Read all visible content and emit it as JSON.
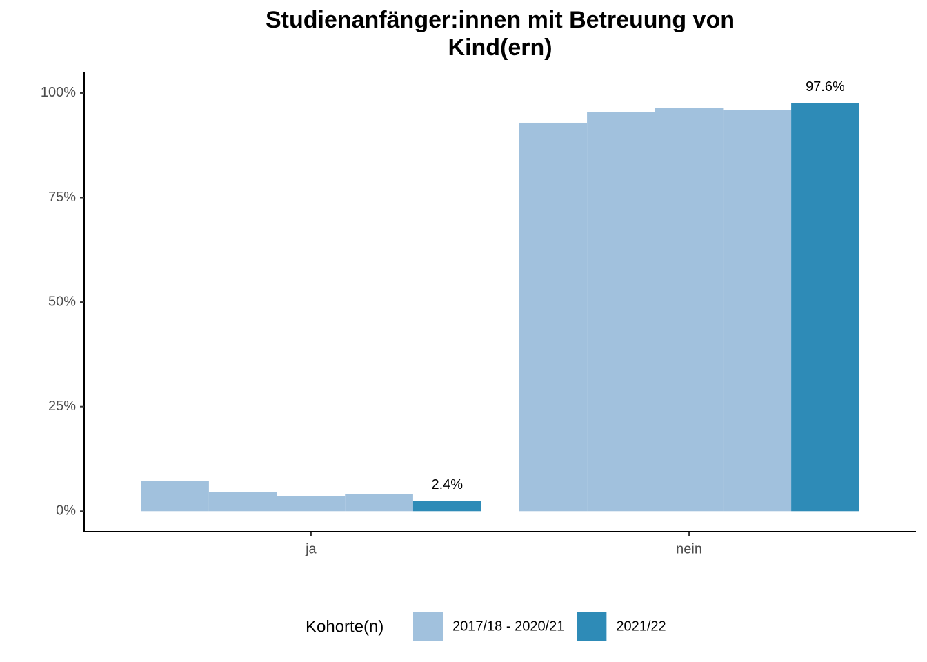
{
  "chart_data": {
    "type": "bar",
    "title": [
      "Studienanfänger:innen mit Betreuung von",
      "Kind(ern)"
    ],
    "categories": [
      "ja",
      "nein"
    ],
    "series": [
      {
        "name": "2017/18 - 2020/21",
        "color": "#a1c1dd",
        "values": [
          [
            7.3,
            4.5,
            3.6,
            4.1
          ],
          [
            92.9,
            95.5,
            96.5,
            96.0
          ]
        ]
      },
      {
        "name": "2021/22",
        "color": "#2e8bb7",
        "values": [
          2.4,
          97.6
        ],
        "value_labels": [
          "2.4%",
          "97.6%"
        ]
      }
    ],
    "legend_title": "Kohorte(n)",
    "legend": "bottom",
    "ylim": [
      -4.9,
      105.1
    ],
    "yticks": [
      {
        "value": 0,
        "label": "0%"
      },
      {
        "value": 25,
        "label": "25%"
      },
      {
        "value": 50,
        "label": "50%"
      },
      {
        "value": 75,
        "label": "75%"
      },
      {
        "value": 100,
        "label": "100%"
      }
    ],
    "grid": false
  }
}
